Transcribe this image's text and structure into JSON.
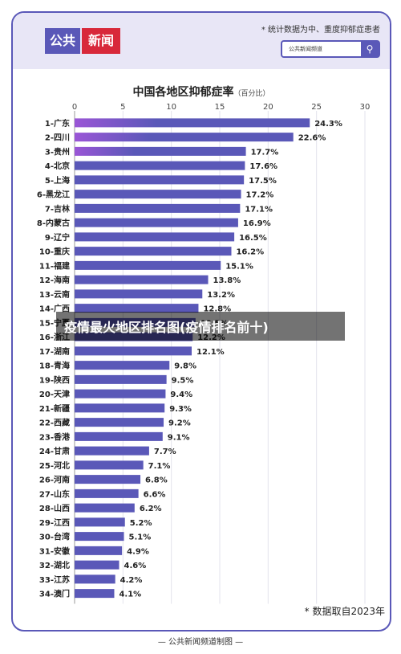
{
  "header": {
    "logo_part1": "公共",
    "logo_part2": "新闻",
    "note": "* 统计数据为中、重度抑郁症患者",
    "search_text": "公共新闻频道",
    "search_icon": "search-icon"
  },
  "overlay_banner": "疫情最火地区排名图(疫情排名前十)",
  "source_note": "* 数据取自2023年",
  "footer": "— 公共新闻频道制图 —",
  "colors": {
    "bar": "#5a58b8",
    "bar_highlight": "#9a56d6",
    "accent_red": "#d8283a"
  },
  "chart_data": {
    "type": "bar",
    "orientation": "horizontal",
    "title": "中国各地区抑郁症率",
    "title_unit": "（百分比）",
    "xlim": [
      0,
      30
    ],
    "xticks": [
      "0",
      "5",
      "10",
      "15",
      "20",
      "25",
      "30"
    ],
    "grid": true,
    "categories": [
      "1-广东",
      "2-四川",
      "3-贵州",
      "4-北京",
      "5-上海",
      "6-黑龙江",
      "7-吉林",
      "8-内蒙古",
      "9-辽宁",
      "10-重庆",
      "11-福建",
      "12-海南",
      "13-云南",
      "14-广西",
      "15-宁夏",
      "16-浙江",
      "17-湖南",
      "18-青海",
      "19-陕西",
      "20-天津",
      "21-新疆",
      "22-西藏",
      "23-香港",
      "24-甘肃",
      "25-河北",
      "26-河南",
      "27-山东",
      "28-山西",
      "29-江西",
      "30-台湾",
      "31-安徽",
      "32-湖北",
      "33-江苏",
      "34-澳门"
    ],
    "values": [
      24.3,
      22.6,
      17.7,
      17.6,
      17.5,
      17.2,
      17.1,
      16.9,
      16.5,
      16.2,
      15.1,
      13.8,
      13.2,
      12.8,
      12.5,
      12.2,
      12.1,
      9.8,
      9.5,
      9.4,
      9.3,
      9.2,
      9.1,
      7.7,
      7.1,
      6.8,
      6.6,
      6.2,
      5.2,
      5.1,
      4.9,
      4.6,
      4.2,
      4.1
    ],
    "labels": [
      "24.3%",
      "22.6%",
      "17.7%",
      "17.6%",
      "17.5%",
      "17.2%",
      "17.1%",
      "16.9%",
      "16.5%",
      "16.2%",
      "15.1%",
      "13.8%",
      "13.2%",
      "12.8%",
      "12.5%",
      "12.2%",
      "12.1%",
      "9.8%",
      "9.5%",
      "9.4%",
      "9.3%",
      "9.2%",
      "9.1%",
      "7.7%",
      "7.1%",
      "6.8%",
      "6.6%",
      "6.2%",
      "5.2%",
      "5.1%",
      "4.9%",
      "4.6%",
      "4.2%",
      "4.1%"
    ]
  }
}
